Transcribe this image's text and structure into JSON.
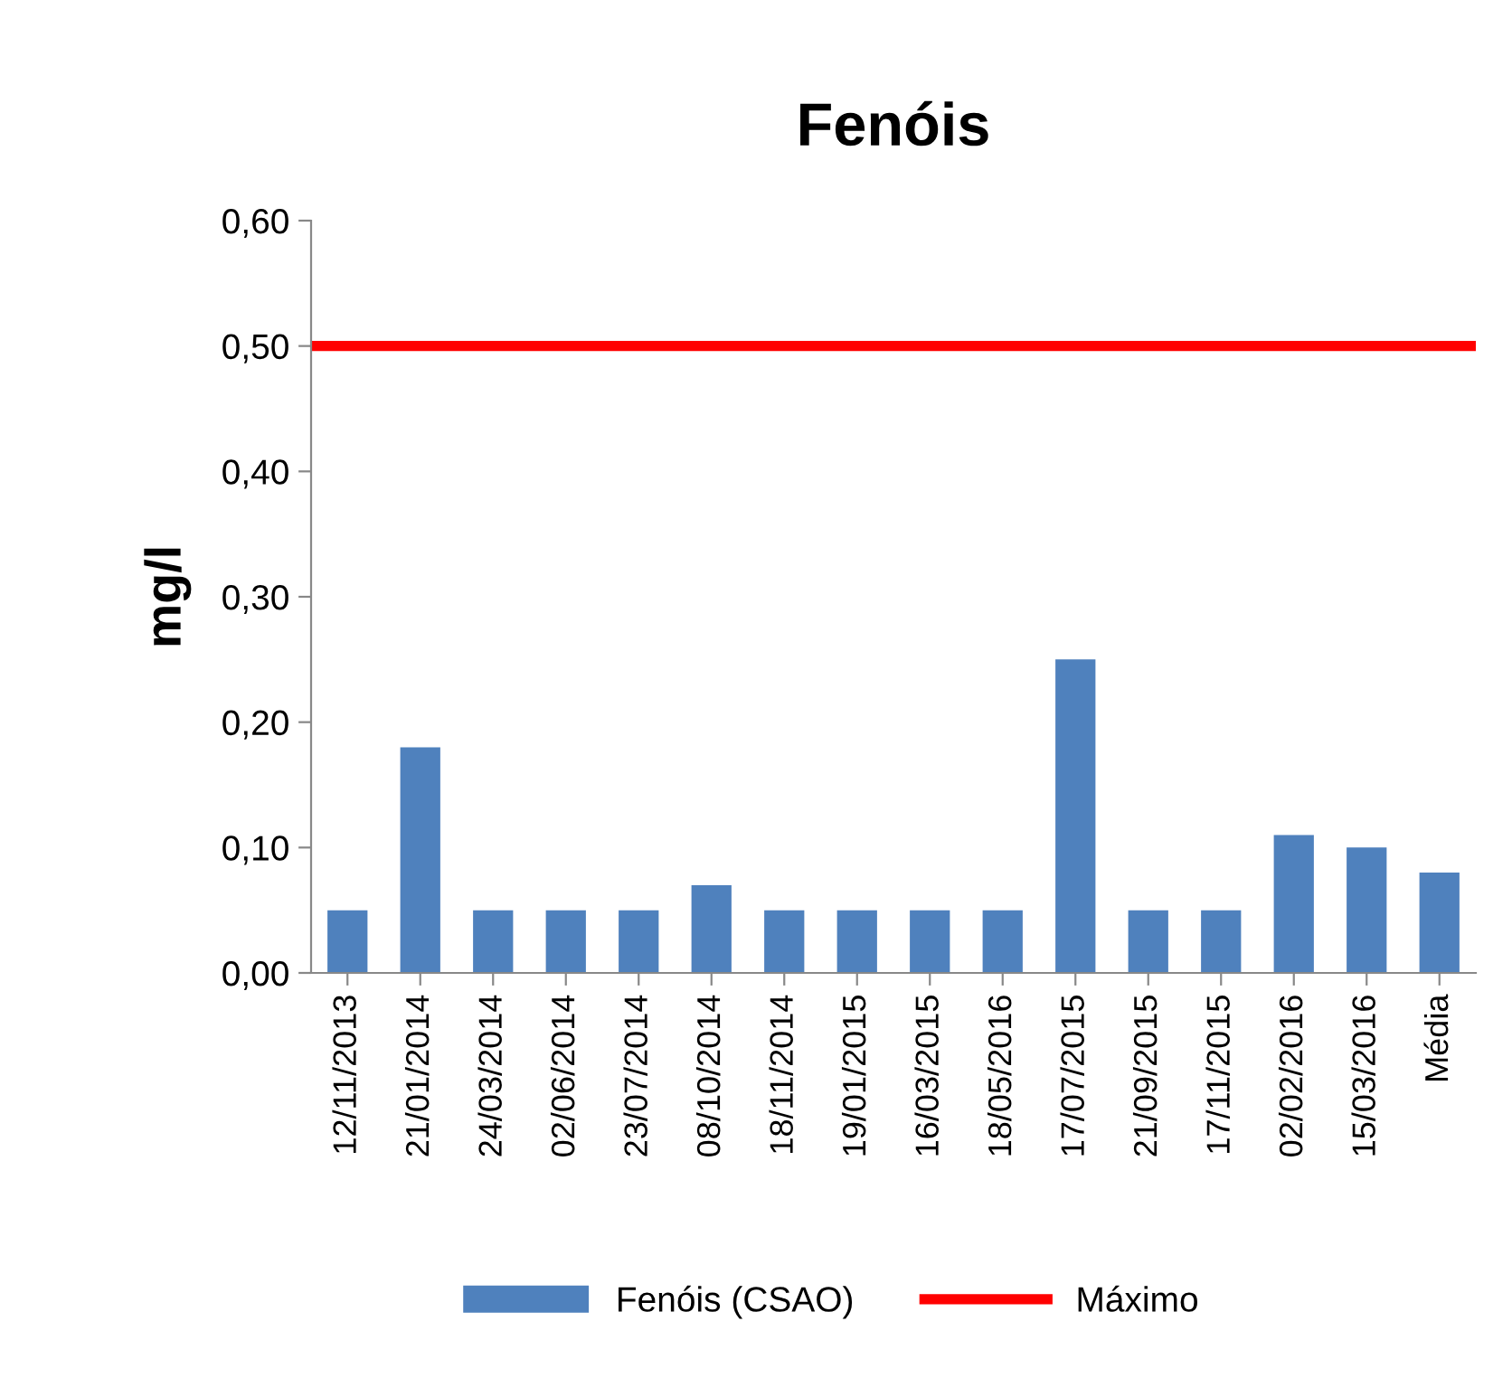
{
  "chart_data": {
    "type": "bar",
    "title": "Fenóis",
    "ylabel": "mg/l",
    "categories": [
      "12/11/2013",
      "21/01/2014",
      "24/03/2014",
      "02/06/2014",
      "23/07/2014",
      "08/10/2014",
      "18/11/2014",
      "19/01/2015",
      "16/03/2015",
      "18/05/2016",
      "17/07/2015",
      "21/09/2015",
      "17/11/2015",
      "02/02/2016",
      "15/03/2016",
      "Média"
    ],
    "series": [
      {
        "name": "Fenóis (CSAO)",
        "color": "#4f81bd",
        "values": [
          0.05,
          0.18,
          0.05,
          0.05,
          0.05,
          0.07,
          0.05,
          0.05,
          0.05,
          0.05,
          0.25,
          0.05,
          0.05,
          0.11,
          0.1,
          0.08
        ]
      }
    ],
    "ref_lines": [
      {
        "axis": "y",
        "value": 0.5,
        "label": "Máximo",
        "color": "#ff0000"
      }
    ],
    "ylim": [
      0,
      0.6
    ],
    "yticks": [
      {
        "value": 0,
        "label": "0,00"
      },
      {
        "value": 0.1,
        "label": "0,10"
      },
      {
        "value": 0.2,
        "label": "0,20"
      },
      {
        "value": 0.3,
        "label": "0,30"
      },
      {
        "value": 0.4,
        "label": "0,40"
      },
      {
        "value": 0.5,
        "label": "0,50"
      },
      {
        "value": 0.6,
        "label": "0,60"
      }
    ],
    "grid": false,
    "legend": "bottom"
  }
}
